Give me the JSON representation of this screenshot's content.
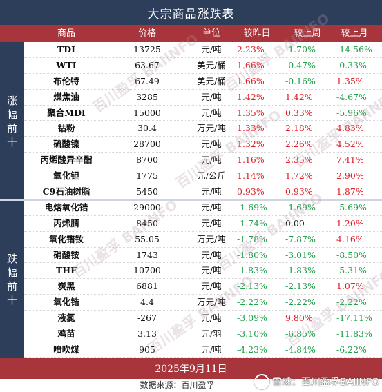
{
  "title": "大宗商品涨跌表",
  "columns": {
    "name": "商品",
    "price": "价格",
    "unit": "单位",
    "day": "较昨日",
    "week": "较上周",
    "month": "较上月"
  },
  "side_labels": {
    "gainers": "涨幅前十",
    "losers": "跌幅前十"
  },
  "colors": {
    "up": "#e01f26",
    "down": "#21a04a",
    "header_red": "#a7353b",
    "navy": "#2d3e5b"
  },
  "rows": [
    {
      "name": "TDI",
      "price": "13725",
      "unit": "元/吨",
      "day": "2.23%",
      "week": "-1.70%",
      "month": "-14.56%"
    },
    {
      "name": "WTI",
      "price": "63.67",
      "unit": "美元/桶",
      "day": "1.66%",
      "week": "-0.47%",
      "month": "-0.33%"
    },
    {
      "name": "布伦特",
      "price": "67.49",
      "unit": "美元/桶",
      "day": "1.66%",
      "week": "-0.16%",
      "month": "1.35%"
    },
    {
      "name": "煤焦油",
      "price": "3285",
      "unit": "元/吨",
      "day": "1.42%",
      "week": "1.42%",
      "month": "-4.67%"
    },
    {
      "name": "聚合MDI",
      "price": "15000",
      "unit": "元/吨",
      "day": "1.35%",
      "week": "0.33%",
      "month": "-5.96%"
    },
    {
      "name": "钴粉",
      "price": "30.4",
      "unit": "万元/吨",
      "day": "1.33%",
      "week": "2.18%",
      "month": "4.83%"
    },
    {
      "name": "硫酸镍",
      "price": "28700",
      "unit": "元/吨",
      "day": "1.32%",
      "week": "2.26%",
      "month": "4.52%"
    },
    {
      "name": "丙烯酸异辛酯",
      "price": "8700",
      "unit": "元/吨",
      "day": "1.16%",
      "week": "2.35%",
      "month": "7.41%"
    },
    {
      "name": "氧化钽",
      "price": "1775",
      "unit": "元/公斤",
      "day": "1.14%",
      "week": "1.72%",
      "month": "2.90%"
    },
    {
      "name": "C9石油树脂",
      "price": "5450",
      "unit": "元/吨",
      "day": "0.93%",
      "week": "0.93%",
      "month": "1.87%"
    },
    {
      "name": "电熔氧化锆",
      "price": "29000",
      "unit": "元/吨",
      "day": "-1.69%",
      "week": "-1.69%",
      "month": "-5.69%"
    },
    {
      "name": "丙烯腈",
      "price": "8450",
      "unit": "元/吨",
      "day": "-1.74%",
      "week": "0.00",
      "month": "1.20%"
    },
    {
      "name": "氧化镨钕",
      "price": "55.05",
      "unit": "万元/吨",
      "day": "-1.78%",
      "week": "-7.87%",
      "month": "4.16%"
    },
    {
      "name": "硝酸铵",
      "price": "1743",
      "unit": "元/吨",
      "day": "-1.80%",
      "week": "-3.01%",
      "month": "-8.50%"
    },
    {
      "name": "THF",
      "price": "10700",
      "unit": "元/吨",
      "day": "-1.83%",
      "week": "-1.83%",
      "month": "-5.31%"
    },
    {
      "name": "炭黑",
      "price": "6881",
      "unit": "元/吨",
      "day": "-2.13%",
      "week": "-2.13%",
      "month": "1.07%"
    },
    {
      "name": "氧化锆",
      "price": "4.4",
      "unit": "万元/吨",
      "day": "-2.22%",
      "week": "-2.22%",
      "month": "-2.22%"
    },
    {
      "name": "液氯",
      "price": "-267",
      "unit": "元/吨",
      "day": "-3.09%",
      "week": "9.80%",
      "month": "-17.11%"
    },
    {
      "name": "鸡苗",
      "price": "3.13",
      "unit": "元/羽",
      "day": "-3.10%",
      "week": "-6.85%",
      "month": "-11.83%"
    },
    {
      "name": "喷吹煤",
      "price": "905",
      "unit": "元/吨",
      "day": "-4.23%",
      "week": "-4.84%",
      "month": "-6.22%"
    }
  ],
  "date": "2025年9月11日",
  "source": "数据来源：百川盈孚",
  "credit": "雪球：百川盈孚BAIINFO",
  "watermark_text": "百川盈孚 BAIINFO"
}
